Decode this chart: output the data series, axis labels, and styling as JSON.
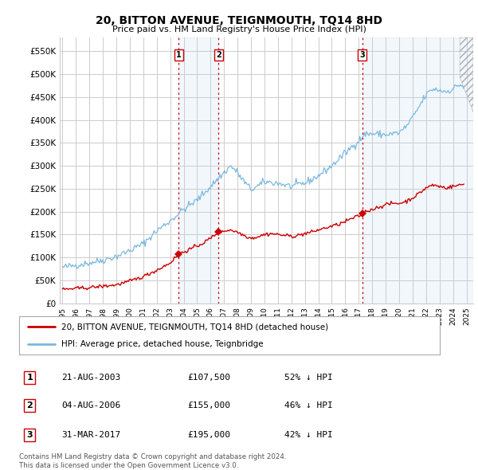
{
  "title": "20, BITTON AVENUE, TEIGNMOUTH, TQ14 8HD",
  "subtitle": "Price paid vs. HM Land Registry's House Price Index (HPI)",
  "ylim": [
    0,
    580000
  ],
  "yticks": [
    0,
    50000,
    100000,
    150000,
    200000,
    250000,
    300000,
    350000,
    400000,
    450000,
    500000,
    550000
  ],
  "ytick_labels": [
    "£0",
    "£50K",
    "£100K",
    "£150K",
    "£200K",
    "£250K",
    "£300K",
    "£350K",
    "£400K",
    "£450K",
    "£500K",
    "£550K"
  ],
  "xlim_start": 1994.8,
  "xlim_end": 2025.5,
  "xtick_labels": [
    "1995",
    "1996",
    "1997",
    "1998",
    "1999",
    "2000",
    "2001",
    "2002",
    "2003",
    "2004",
    "2005",
    "2006",
    "2007",
    "2008",
    "2009",
    "2010",
    "2011",
    "2012",
    "2013",
    "2014",
    "2015",
    "2016",
    "2017",
    "2018",
    "2019",
    "2020",
    "2021",
    "2022",
    "2023",
    "2024",
    "2025"
  ],
  "hpi_color": "#7ab8e0",
  "price_color": "#cc0000",
  "vline_color": "#cc0000",
  "shade_color": "#dceeff",
  "sale_dates": [
    2003.64,
    2006.59,
    2017.25
  ],
  "sale_prices": [
    107500,
    155000,
    195000
  ],
  "sale_labels": [
    "1",
    "2",
    "3"
  ],
  "legend_label_red": "20, BITTON AVENUE, TEIGNMOUTH, TQ14 8HD (detached house)",
  "legend_label_blue": "HPI: Average price, detached house, Teignbridge",
  "table_entries": [
    {
      "num": "1",
      "date": "21-AUG-2003",
      "price": "£107,500",
      "pct": "52% ↓ HPI"
    },
    {
      "num": "2",
      "date": "04-AUG-2006",
      "price": "£155,000",
      "pct": "46% ↓ HPI"
    },
    {
      "num": "3",
      "date": "31-MAR-2017",
      "price": "£195,000",
      "pct": "42% ↓ HPI"
    }
  ],
  "footnote": "Contains HM Land Registry data © Crown copyright and database right 2024.\nThis data is licensed under the Open Government Licence v3.0.",
  "bg_color": "#ffffff",
  "grid_color": "#cccccc",
  "hpi_anchors": [
    [
      1995.0,
      78000
    ],
    [
      1996.0,
      83000
    ],
    [
      1997.0,
      88000
    ],
    [
      1998.0,
      94000
    ],
    [
      1999.0,
      102000
    ],
    [
      2000.0,
      115000
    ],
    [
      2001.0,
      130000
    ],
    [
      2002.0,
      158000
    ],
    [
      2003.0,
      180000
    ],
    [
      2004.0,
      205000
    ],
    [
      2004.5,
      215000
    ],
    [
      2005.0,
      225000
    ],
    [
      2006.0,
      255000
    ],
    [
      2007.0,
      285000
    ],
    [
      2007.5,
      300000
    ],
    [
      2008.0,
      285000
    ],
    [
      2008.5,
      265000
    ],
    [
      2009.0,
      248000
    ],
    [
      2009.5,
      255000
    ],
    [
      2010.0,
      265000
    ],
    [
      2011.0,
      262000
    ],
    [
      2012.0,
      255000
    ],
    [
      2013.0,
      262000
    ],
    [
      2014.0,
      278000
    ],
    [
      2015.0,
      300000
    ],
    [
      2016.0,
      328000
    ],
    [
      2017.0,
      355000
    ],
    [
      2017.5,
      370000
    ],
    [
      2018.0,
      370000
    ],
    [
      2019.0,
      368000
    ],
    [
      2020.0,
      372000
    ],
    [
      2020.5,
      385000
    ],
    [
      2021.0,
      405000
    ],
    [
      2021.5,
      430000
    ],
    [
      2022.0,
      455000
    ],
    [
      2022.5,
      468000
    ],
    [
      2023.0,
      465000
    ],
    [
      2023.5,
      462000
    ],
    [
      2024.0,
      468000
    ],
    [
      2024.5,
      478000
    ],
    [
      2024.8,
      472000
    ]
  ],
  "price_anchors": [
    [
      1995.0,
      30000
    ],
    [
      1996.0,
      32000
    ],
    [
      1997.0,
      34000
    ],
    [
      1998.0,
      37000
    ],
    [
      1999.0,
      40000
    ],
    [
      2000.0,
      48000
    ],
    [
      2001.0,
      58000
    ],
    [
      2002.0,
      72000
    ],
    [
      2003.0,
      88000
    ],
    [
      2003.64,
      107500
    ],
    [
      2004.0,
      112000
    ],
    [
      2004.5,
      118000
    ],
    [
      2005.0,
      125000
    ],
    [
      2005.5,
      132000
    ],
    [
      2006.0,
      142000
    ],
    [
      2006.59,
      155000
    ],
    [
      2007.0,
      158000
    ],
    [
      2007.5,
      160000
    ],
    [
      2008.0,
      155000
    ],
    [
      2008.5,
      148000
    ],
    [
      2009.0,
      142000
    ],
    [
      2009.5,
      145000
    ],
    [
      2010.0,
      150000
    ],
    [
      2010.5,
      152000
    ],
    [
      2011.0,
      150000
    ],
    [
      2011.5,
      148000
    ],
    [
      2012.0,
      146000
    ],
    [
      2012.5,
      148000
    ],
    [
      2013.0,
      152000
    ],
    [
      2013.5,
      155000
    ],
    [
      2014.0,
      160000
    ],
    [
      2014.5,
      164000
    ],
    [
      2015.0,
      168000
    ],
    [
      2015.5,
      172000
    ],
    [
      2016.0,
      178000
    ],
    [
      2016.5,
      185000
    ],
    [
      2017.0,
      190000
    ],
    [
      2017.25,
      195000
    ],
    [
      2017.5,
      200000
    ],
    [
      2018.0,
      205000
    ],
    [
      2018.5,
      210000
    ],
    [
      2019.0,
      215000
    ],
    [
      2019.5,
      218000
    ],
    [
      2020.0,
      218000
    ],
    [
      2020.5,
      222000
    ],
    [
      2021.0,
      230000
    ],
    [
      2021.5,
      240000
    ],
    [
      2022.0,
      252000
    ],
    [
      2022.5,
      258000
    ],
    [
      2023.0,
      255000
    ],
    [
      2023.5,
      252000
    ],
    [
      2024.0,
      255000
    ],
    [
      2024.5,
      258000
    ],
    [
      2024.8,
      260000
    ]
  ]
}
